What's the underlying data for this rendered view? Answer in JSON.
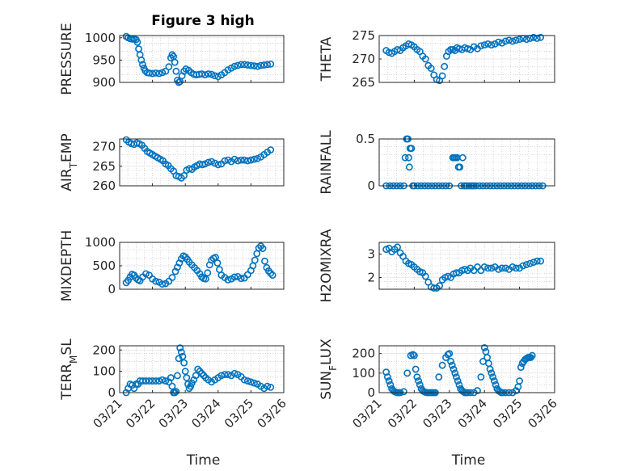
{
  "figure_title": "Figure 3 high",
  "colors": {
    "marker": "#0072BD",
    "axis": "#262626",
    "grid": "#bfbfbf"
  },
  "chart_data": [
    {
      "type": "scatter",
      "ylabel_main": "PRESSURE",
      "ylabel_sub": "",
      "ylabel_tail": "",
      "yticks": [
        "900",
        "950",
        "1000"
      ],
      "ylim": [
        900,
        1005
      ],
      "xticks": [
        "03/21",
        "03/22",
        "03/23",
        "03/24",
        "03/25",
        "03/26"
      ],
      "show_xticks": false,
      "x": [
        0.2,
        0.26,
        0.32,
        0.38,
        0.44,
        0.5,
        0.54,
        0.58,
        0.62,
        0.66,
        0.7,
        0.74,
        0.78,
        0.84,
        0.9,
        1.0,
        1.1,
        1.2,
        1.3,
        1.4,
        1.5,
        1.56,
        1.6,
        1.64,
        1.68,
        1.72,
        1.76,
        1.8,
        1.84,
        1.9,
        1.96,
        2.02,
        2.1,
        2.18,
        2.26,
        2.34,
        2.42,
        2.5,
        2.6,
        2.7,
        2.8,
        2.9,
        3.0,
        3.1,
        3.2,
        3.3,
        3.4,
        3.5,
        3.6,
        3.7,
        3.8,
        3.9,
        4.0,
        4.1,
        4.2,
        4.3,
        4.4,
        4.5,
        4.6
      ],
      "y": [
        1003,
        1000,
        998,
        997,
        997,
        996,
        990,
        975,
        962,
        950,
        940,
        932,
        926,
        922,
        921,
        920,
        921,
        920,
        922,
        925,
        935,
        955,
        962,
        958,
        945,
        925,
        905,
        898,
        902,
        915,
        925,
        930,
        927,
        922,
        918,
        917,
        918,
        919,
        917,
        919,
        918,
        915,
        913,
        917,
        922,
        928,
        932,
        936,
        938,
        940,
        940,
        939,
        938,
        937,
        936,
        938,
        939,
        940,
        941
      ]
    },
    {
      "type": "scatter",
      "ylabel_main": "THETA",
      "ylabel_sub": "",
      "ylabel_tail": "",
      "yticks": [
        "265",
        "270",
        "275"
      ],
      "ylim": [
        265,
        275
      ],
      "xticks": [
        "03/21",
        "03/22",
        "03/23",
        "03/24",
        "03/25",
        "03/26"
      ],
      "show_xticks": false,
      "x": [
        0.2,
        0.28,
        0.36,
        0.44,
        0.52,
        0.6,
        0.68,
        0.76,
        0.84,
        0.92,
        1.0,
        1.08,
        1.16,
        1.24,
        1.32,
        1.4,
        1.48,
        1.56,
        1.64,
        1.72,
        1.8,
        1.86,
        1.92,
        1.98,
        2.04,
        2.1,
        2.16,
        2.22,
        2.28,
        2.36,
        2.44,
        2.52,
        2.6,
        2.7,
        2.8,
        2.9,
        3.0,
        3.1,
        3.2,
        3.3,
        3.4,
        3.5,
        3.6,
        3.7,
        3.8,
        3.9,
        4.0,
        4.1,
        4.2,
        4.3,
        4.4,
        4.5,
        4.6
      ],
      "y": [
        271.8,
        271.4,
        271.2,
        271.6,
        272.0,
        271.8,
        272.4,
        272.8,
        273.2,
        273.0,
        272.6,
        272.0,
        271.6,
        270.6,
        270.0,
        268.6,
        268.0,
        266.6,
        265.6,
        265.4,
        266.4,
        268.4,
        270.6,
        271.6,
        272.0,
        272.0,
        271.8,
        272.4,
        272.2,
        272.0,
        272.4,
        272.2,
        272.0,
        272.6,
        272.2,
        272.8,
        273.0,
        273.2,
        273.0,
        273.2,
        273.6,
        273.4,
        273.8,
        274.0,
        273.8,
        274.0,
        274.2,
        274.4,
        274.2,
        274.4,
        274.6,
        274.4,
        274.6
      ]
    },
    {
      "type": "scatter",
      "ylabel_main": "AIR",
      "ylabel_sub": "T",
      "ylabel_tail": "EMP",
      "yticks": [
        "260",
        "265",
        "270"
      ],
      "ylim": [
        260,
        272
      ],
      "xticks": [
        "03/21",
        "03/22",
        "03/23",
        "03/24",
        "03/25",
        "03/26"
      ],
      "show_xticks": false,
      "x": [
        0.2,
        0.28,
        0.36,
        0.44,
        0.52,
        0.6,
        0.68,
        0.76,
        0.84,
        0.92,
        1.0,
        1.08,
        1.16,
        1.24,
        1.32,
        1.4,
        1.48,
        1.56,
        1.64,
        1.72,
        1.8,
        1.88,
        1.96,
        2.04,
        2.12,
        2.2,
        2.28,
        2.36,
        2.44,
        2.52,
        2.6,
        2.7,
        2.8,
        2.9,
        3.0,
        3.1,
        3.2,
        3.3,
        3.4,
        3.5,
        3.6,
        3.7,
        3.8,
        3.9,
        4.0,
        4.1,
        4.2,
        4.3,
        4.4,
        4.5,
        4.6
      ],
      "y": [
        271.8,
        271.2,
        270.8,
        270.6,
        271.0,
        270.8,
        270.4,
        269.6,
        268.8,
        268.4,
        268.0,
        267.6,
        267.2,
        266.8,
        266.4,
        265.6,
        265.2,
        264.4,
        263.8,
        262.6,
        262.4,
        262.0,
        262.6,
        264.0,
        264.4,
        264.2,
        264.8,
        265.2,
        265.6,
        265.4,
        265.6,
        266.0,
        266.2,
        265.8,
        265.4,
        265.6,
        266.4,
        266.6,
        266.2,
        266.8,
        266.4,
        266.6,
        266.6,
        266.4,
        266.6,
        266.8,
        267.0,
        267.4,
        268.0,
        268.6,
        269.2
      ]
    },
    {
      "type": "scatter",
      "ylabel_main": "RAINFALL",
      "ylabel_sub": "",
      "ylabel_tail": "",
      "yticks": [
        "0",
        "0.5"
      ],
      "ylim": [
        0,
        0.5
      ],
      "xticks": [
        "03/21",
        "03/22",
        "03/23",
        "03/24",
        "03/25",
        "03/26"
      ],
      "show_xticks": false,
      "x": [
        0.2,
        0.3,
        0.4,
        0.5,
        0.6,
        0.7,
        0.74,
        0.78,
        0.8,
        0.82,
        0.84,
        0.86,
        0.88,
        0.92,
        0.96,
        1.0,
        1.1,
        1.2,
        1.3,
        1.4,
        1.5,
        1.6,
        1.7,
        1.8,
        1.9,
        2.0,
        2.1,
        2.14,
        2.18,
        2.22,
        2.26,
        2.3,
        2.34,
        2.38,
        2.42,
        2.46,
        2.5,
        2.56,
        2.62,
        2.66,
        2.7,
        2.76,
        2.86,
        2.96,
        3.06,
        3.16,
        3.26,
        3.36,
        3.46,
        3.56,
        3.66,
        3.76,
        3.86,
        3.96,
        4.06,
        4.16,
        4.26,
        4.36,
        4.46,
        4.56,
        4.66
      ],
      "y": [
        0,
        0,
        0,
        0,
        0,
        0,
        0.3,
        0.5,
        0.5,
        0.5,
        0.3,
        0.2,
        0.4,
        0.4,
        0,
        0,
        0,
        0,
        0,
        0,
        0,
        0,
        0,
        0,
        0,
        0,
        0.3,
        0.3,
        0.3,
        0.3,
        0.2,
        0.2,
        0,
        0.3,
        0,
        0,
        0,
        0,
        0,
        0,
        0,
        0,
        0,
        0,
        0,
        0,
        0,
        0,
        0,
        0,
        0,
        0,
        0,
        0,
        0,
        0,
        0,
        0,
        0,
        0,
        0
      ]
    },
    {
      "type": "scatter",
      "ylabel_main": "MIXDEPTH",
      "ylabel_sub": "",
      "ylabel_tail": "",
      "yticks": [
        "0",
        "500",
        "1000"
      ],
      "ylim": [
        0,
        1000
      ],
      "xticks": [
        "03/21",
        "03/22",
        "03/23",
        "03/24",
        "03/25",
        "03/26"
      ],
      "show_xticks": false,
      "x": [
        0.2,
        0.26,
        0.32,
        0.38,
        0.44,
        0.5,
        0.56,
        0.62,
        0.7,
        0.8,
        0.9,
        1.0,
        1.1,
        1.2,
        1.3,
        1.4,
        1.5,
        1.6,
        1.7,
        1.76,
        1.82,
        1.88,
        1.94,
        2.0,
        2.06,
        2.12,
        2.2,
        2.28,
        2.36,
        2.44,
        2.5,
        2.56,
        2.62,
        2.68,
        2.74,
        2.8,
        2.86,
        2.92,
        2.98,
        3.04,
        3.1,
        3.2,
        3.3,
        3.4,
        3.5,
        3.6,
        3.7,
        3.8,
        3.9,
        4.0,
        4.06,
        4.12,
        4.18,
        4.24,
        4.3,
        4.36,
        4.42,
        4.48,
        4.54,
        4.6,
        4.66
      ],
      "y": [
        140,
        190,
        260,
        320,
        300,
        240,
        200,
        180,
        260,
        330,
        300,
        220,
        170,
        150,
        110,
        120,
        170,
        250,
        380,
        470,
        560,
        650,
        710,
        690,
        640,
        580,
        520,
        460,
        400,
        330,
        260,
        230,
        220,
        350,
        520,
        620,
        660,
        680,
        560,
        420,
        300,
        250,
        200,
        220,
        260,
        270,
        230,
        240,
        310,
        400,
        500,
        620,
        760,
        880,
        920,
        870,
        600,
        460,
        390,
        340,
        300
      ]
    },
    {
      "type": "scatter",
      "ylabel_main": "H2OMIXRA",
      "ylabel_sub": "",
      "ylabel_tail": "",
      "yticks": [
        "2",
        "3"
      ],
      "ylim": [
        1.5,
        3.5
      ],
      "xticks": [
        "03/21",
        "03/22",
        "03/23",
        "03/24",
        "03/25",
        "03/26"
      ],
      "show_xticks": false,
      "x": [
        0.2,
        0.28,
        0.36,
        0.44,
        0.52,
        0.6,
        0.68,
        0.76,
        0.84,
        0.92,
        1.0,
        1.08,
        1.16,
        1.24,
        1.32,
        1.4,
        1.48,
        1.56,
        1.64,
        1.72,
        1.8,
        1.88,
        1.96,
        2.04,
        2.12,
        2.2,
        2.28,
        2.36,
        2.44,
        2.52,
        2.6,
        2.7,
        2.8,
        2.9,
        3.0,
        3.1,
        3.2,
        3.3,
        3.4,
        3.5,
        3.6,
        3.7,
        3.8,
        3.9,
        4.0,
        4.1,
        4.2,
        4.3,
        4.4,
        4.5,
        4.6
      ],
      "y": [
        3.2,
        3.25,
        3.1,
        3.2,
        3.3,
        3.05,
        2.9,
        2.7,
        2.6,
        2.55,
        2.45,
        2.35,
        2.25,
        2.2,
        2.05,
        1.8,
        1.6,
        1.55,
        1.55,
        1.65,
        1.9,
        2.0,
        2.05,
        2.0,
        2.15,
        2.2,
        2.2,
        2.3,
        2.35,
        2.3,
        2.4,
        2.3,
        2.45,
        2.3,
        2.45,
        2.4,
        2.4,
        2.45,
        2.35,
        2.4,
        2.4,
        2.35,
        2.45,
        2.4,
        2.4,
        2.5,
        2.55,
        2.6,
        2.65,
        2.7,
        2.7
      ]
    },
    {
      "type": "scatter",
      "ylabel_main": "TERR",
      "ylabel_sub": "M",
      "ylabel_tail": "SL",
      "yticks": [
        "0",
        "100",
        "200"
      ],
      "ylim": [
        0,
        220
      ],
      "xticks": [
        "03/21",
        "03/22",
        "03/23",
        "03/24",
        "03/25",
        "03/26"
      ],
      "show_xticks": true,
      "x": [
        0.2,
        0.26,
        0.32,
        0.38,
        0.44,
        0.5,
        0.56,
        0.62,
        0.7,
        0.8,
        0.9,
        1.0,
        1.1,
        1.2,
        1.3,
        1.4,
        1.5,
        1.56,
        1.6,
        1.64,
        1.68,
        1.72,
        1.76,
        1.8,
        1.84,
        1.88,
        1.92,
        1.96,
        2.0,
        2.04,
        2.08,
        2.12,
        2.16,
        2.2,
        2.26,
        2.32,
        2.38,
        2.44,
        2.5,
        2.56,
        2.62,
        2.7,
        2.8,
        2.9,
        3.0,
        3.1,
        3.2,
        3.3,
        3.4,
        3.5,
        3.6,
        3.7,
        3.8,
        3.9,
        4.0,
        4.1,
        4.2,
        4.3,
        4.4,
        4.5,
        4.6
      ],
      "y": [
        0,
        20,
        40,
        35,
        20,
        40,
        40,
        55,
        55,
        55,
        55,
        55,
        55,
        55,
        60,
        55,
        50,
        70,
        30,
        0,
        0,
        5,
        80,
        160,
        210,
        190,
        170,
        140,
        100,
        70,
        40,
        20,
        30,
        45,
        60,
        80,
        110,
        100,
        90,
        80,
        70,
        60,
        50,
        60,
        70,
        80,
        85,
        85,
        80,
        90,
        85,
        75,
        60,
        55,
        50,
        45,
        40,
        30,
        20,
        30,
        25
      ]
    },
    {
      "type": "scatter",
      "ylabel_main": "SUN",
      "ylabel_sub": "F",
      "ylabel_tail": "LUX",
      "yticks": [
        "0",
        "100",
        "200"
      ],
      "ylim": [
        0,
        240
      ],
      "xticks": [
        "03/21",
        "03/22",
        "03/23",
        "03/24",
        "03/25",
        "03/26"
      ],
      "show_xticks": true,
      "x": [
        0.2,
        0.24,
        0.28,
        0.32,
        0.36,
        0.4,
        0.44,
        0.48,
        0.52,
        0.56,
        0.6,
        0.7,
        0.8,
        0.9,
        0.96,
        1.0,
        1.04,
        1.08,
        1.12,
        1.16,
        1.2,
        1.24,
        1.28,
        1.32,
        1.36,
        1.4,
        1.44,
        1.48,
        1.52,
        1.56,
        1.6,
        1.7,
        1.8,
        1.9,
        1.96,
        2.0,
        2.04,
        2.08,
        2.12,
        2.16,
        2.2,
        2.24,
        2.28,
        2.32,
        2.36,
        2.4,
        2.44,
        2.48,
        2.52,
        2.6,
        2.7,
        2.8,
        2.9,
        2.96,
        3.0,
        3.04,
        3.08,
        3.12,
        3.16,
        3.2,
        3.24,
        3.28,
        3.32,
        3.36,
        3.4,
        3.44,
        3.48,
        3.52,
        3.6,
        3.7,
        3.8,
        3.9,
        3.96,
        4.0,
        4.04,
        4.08,
        4.12,
        4.16,
        4.2,
        4.24,
        4.28,
        4.32,
        4.36
      ],
      "y": [
        105,
        80,
        60,
        40,
        20,
        10,
        5,
        2,
        0,
        0,
        0,
        5,
        100,
        190,
        195,
        190,
        120,
        80,
        60,
        40,
        20,
        10,
        5,
        2,
        0,
        0,
        0,
        0,
        0,
        0,
        0,
        80,
        140,
        180,
        195,
        200,
        160,
        140,
        120,
        100,
        80,
        60,
        40,
        20,
        10,
        5,
        0,
        0,
        0,
        0,
        0,
        10,
        80,
        160,
        230,
        210,
        180,
        150,
        120,
        100,
        80,
        60,
        40,
        20,
        10,
        5,
        0,
        0,
        0,
        0,
        0,
        10,
        30,
        60,
        130,
        150,
        160,
        170,
        175,
        180,
        180,
        180,
        190
      ]
    }
  ],
  "axis_label": "Time"
}
